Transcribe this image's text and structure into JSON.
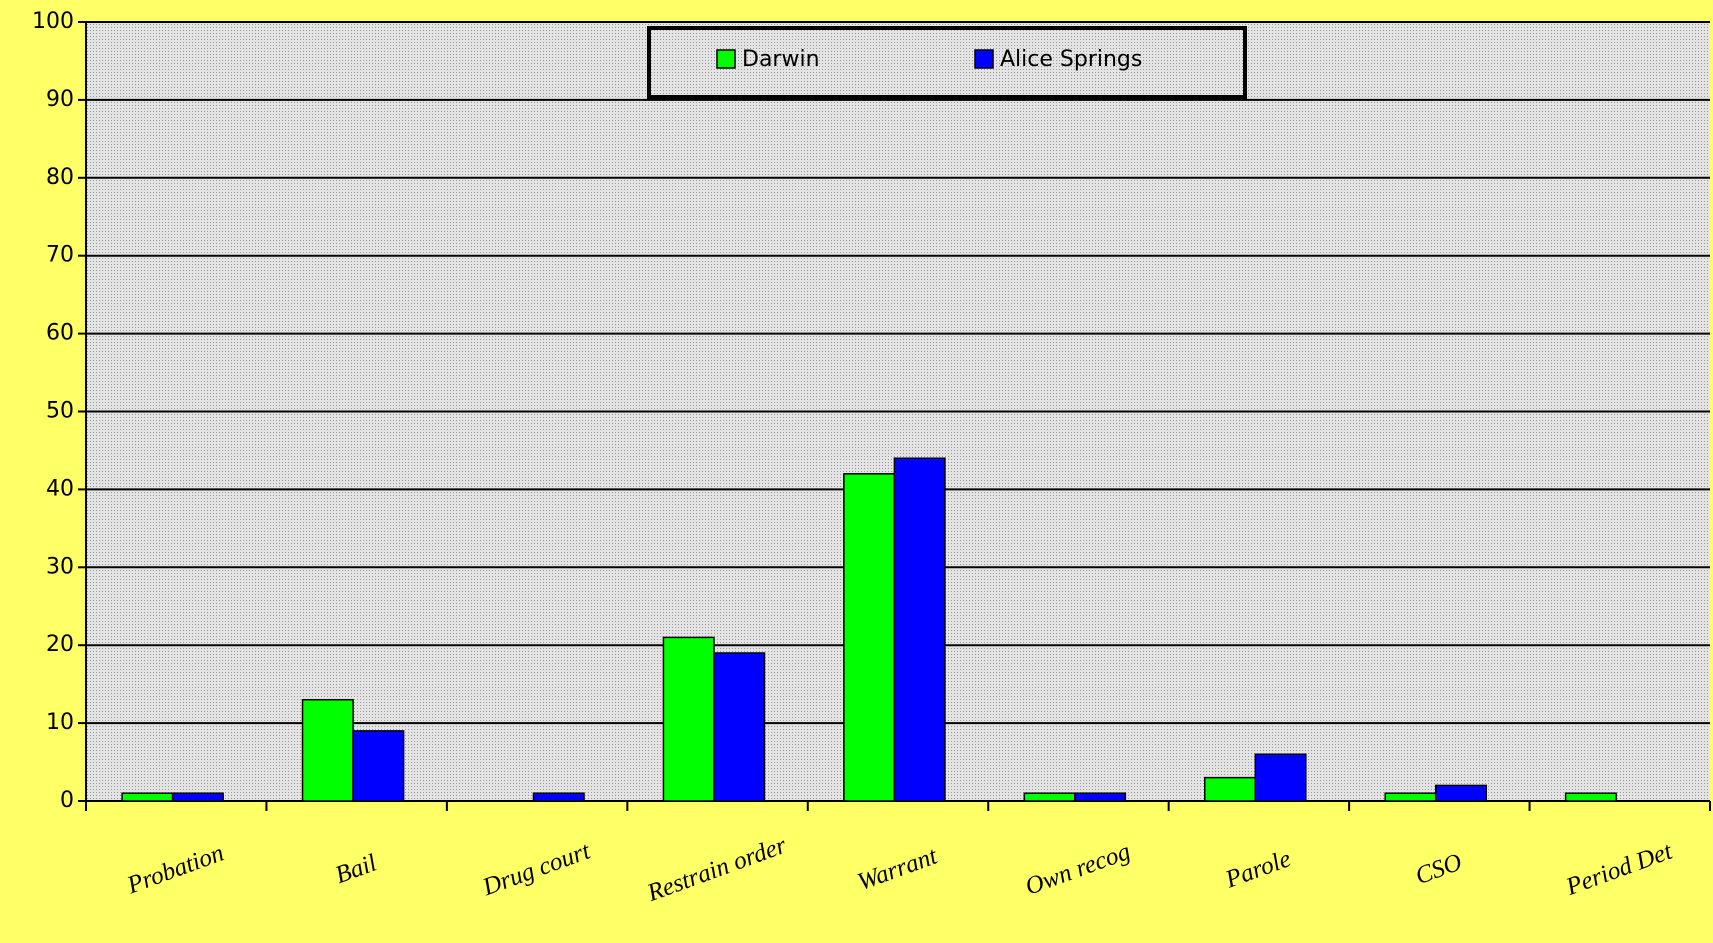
{
  "chart_data": {
    "type": "bar",
    "categories": [
      "Probation",
      "Bail",
      "Drug court",
      "Restrain order",
      "Warrant",
      "Own recog",
      "Parole",
      "CSO",
      "Period Det"
    ],
    "series": [
      {
        "name": "Darwin",
        "color": "#00ff00",
        "values": [
          1,
          13,
          0,
          21,
          42,
          1,
          3,
          1,
          1
        ]
      },
      {
        "name": "Alice Springs",
        "color": "#0000ff",
        "values": [
          1,
          9,
          1,
          19,
          44,
          1,
          6,
          2,
          0
        ]
      }
    ],
    "ylim": [
      0,
      100
    ],
    "yticks": [
      0,
      10,
      20,
      30,
      40,
      50,
      60,
      70,
      80,
      90,
      100
    ],
    "grid": true,
    "legend": "top"
  }
}
